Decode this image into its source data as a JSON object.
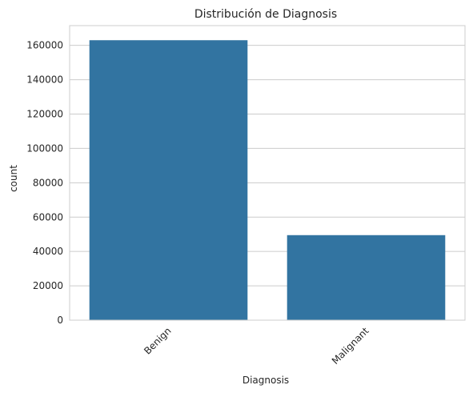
{
  "chart_data": {
    "type": "bar",
    "title": "Distribución de Diagnosis",
    "xlabel": "Diagnosis",
    "ylabel": "count",
    "categories": [
      "Benign",
      "Malignant"
    ],
    "values": [
      163000,
      49500
    ],
    "ylim": [
      0,
      171500
    ],
    "yticks": [
      0,
      20000,
      40000,
      60000,
      80000,
      100000,
      120000,
      140000,
      160000
    ],
    "grid": true,
    "bar_color": "#3274a1",
    "grid_color": "#cccccc",
    "xtick_rotation": 45
  }
}
